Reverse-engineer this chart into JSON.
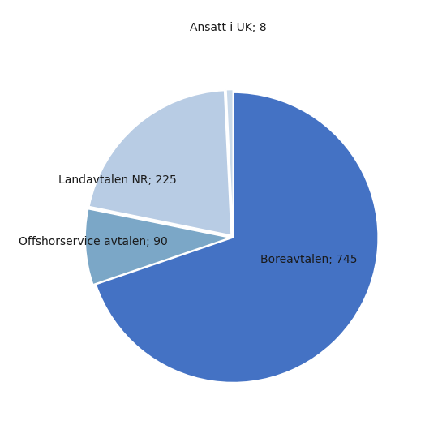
{
  "labels_display": [
    "Boreavtalen; 745",
    "Offshorservice avtalen; 90",
    "Landavtalen NR; 225",
    "Ansatt i UK; 8"
  ],
  "values": [
    745,
    90,
    225,
    8
  ],
  "colors": [
    "#4472C4",
    "#7BA7C7",
    "#B8CCE4",
    "#C9D9EA"
  ],
  "startangle": 90,
  "background_color": "#ffffff",
  "font_size": 10,
  "explode": [
    0.0,
    0.02,
    0.02,
    0.02
  ],
  "label_ha": [
    "left",
    "left",
    "left",
    "left"
  ]
}
